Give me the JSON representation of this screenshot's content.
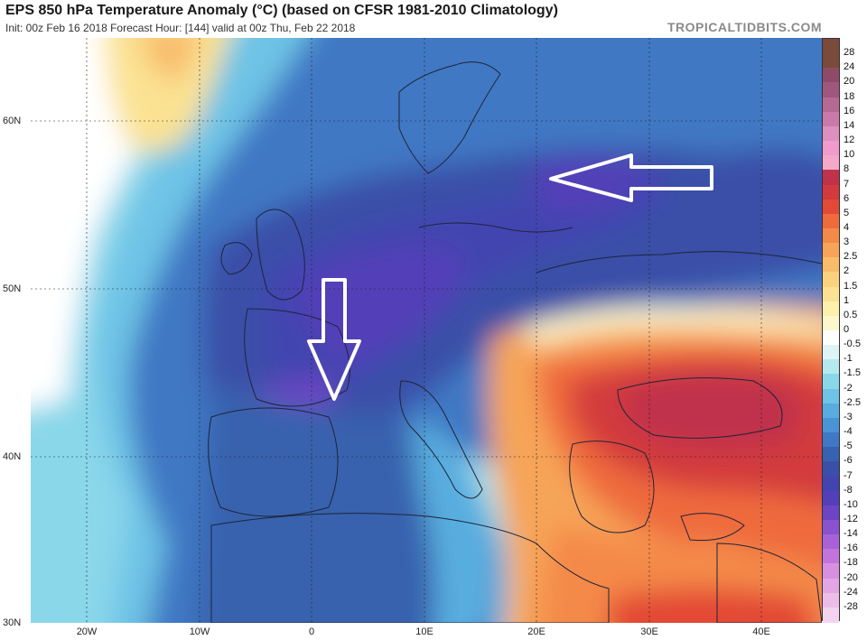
{
  "header": {
    "title": "EPS 850 hPa Temperature Anomaly (°C) (based on CFSR 1981-2010 Climatology)",
    "subtitle": "Init: 00z Feb 16 2018   Forecast Hour: [144]   valid at 00z Thu, Feb 22 2018",
    "watermark": "TROPICALTIDBITS.COM"
  },
  "axes": {
    "lat_labels": [
      "60N",
      "50N",
      "40N",
      "30N"
    ],
    "lon_labels": [
      "20W",
      "10W",
      "0",
      "10E",
      "20E",
      "30E",
      "40E"
    ]
  },
  "colorbar": {
    "labels": [
      "28",
      "24",
      "20",
      "18",
      "16",
      "14",
      "12",
      "10",
      "8",
      "7",
      "6",
      "5",
      "4",
      "3",
      "2.5",
      "2",
      "1.5",
      "1",
      "0.5",
      "0",
      "-0.5",
      "-1",
      "-1.5",
      "-2",
      "-2.5",
      "-3",
      "-4",
      "-5",
      "-6",
      "-7",
      "-8",
      "-10",
      "-12",
      "-14",
      "-16",
      "-18",
      "-20",
      "-24",
      "-28"
    ],
    "colors": [
      "#7a4a3a",
      "#8f4a67",
      "#a0577e",
      "#b46a93",
      "#c97aaa",
      "#dd8fbf",
      "#f09bcc",
      "#f5a9c8",
      "#c0324b",
      "#d33a3e",
      "#e34a35",
      "#ef6a3c",
      "#f48a4a",
      "#f6a458",
      "#f8bc6a",
      "#fad27e",
      "#fbe293",
      "#fcf0ad",
      "#fdf8cc",
      "#ffffff",
      "#ddf4f6",
      "#b4e9ef",
      "#8ad7ea",
      "#6ec3e6",
      "#58addf",
      "#4a94d5",
      "#3f78c4",
      "#3762ad",
      "#3a4fa8",
      "#4245b0",
      "#5240b8",
      "#6c44c4",
      "#8a52cf",
      "#a862d8",
      "#c274dc",
      "#d790e0",
      "#e3a6e4",
      "#ecbde9",
      "#f3d4ef"
    ]
  },
  "annotations": {
    "arrows": [
      {
        "name": "arrow-west-russia",
        "direction": "west"
      },
      {
        "name": "arrow-south-france",
        "direction": "south"
      }
    ]
  }
}
